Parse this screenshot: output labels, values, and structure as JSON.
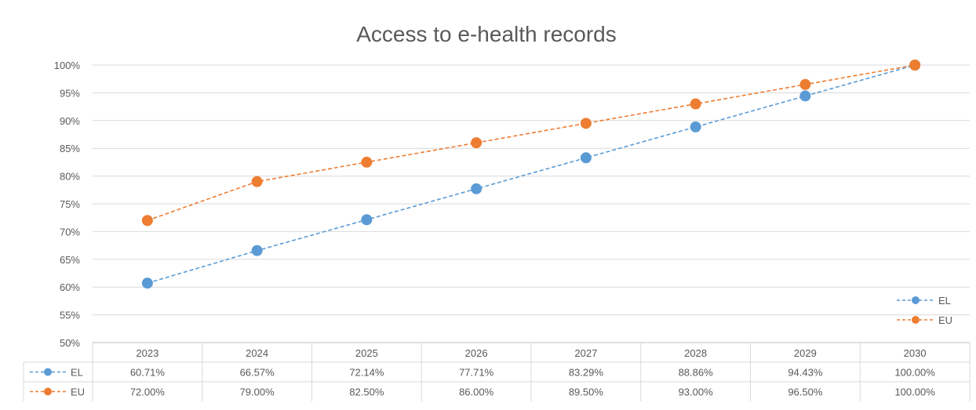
{
  "chart_data": {
    "type": "line",
    "title": "Access to e-health records",
    "categories": [
      "2023",
      "2024",
      "2025",
      "2026",
      "2027",
      "2028",
      "2029",
      "2030"
    ],
    "series": [
      {
        "name": "EL",
        "color": "#5b9bd5",
        "values": [
          60.71,
          66.57,
          72.14,
          77.71,
          83.29,
          88.86,
          94.43,
          100.0
        ],
        "table_labels": [
          "60.71%",
          "66.57%",
          "72.14%",
          "77.71%",
          "83.29%",
          "88.86%",
          "94.43%",
          "100.00%"
        ]
      },
      {
        "name": "EU",
        "color": "#ed7d31",
        "values": [
          72.0,
          79.0,
          82.5,
          86.0,
          89.5,
          93.0,
          96.5,
          100.0
        ],
        "table_labels": [
          "72.00%",
          "79.00%",
          "82.50%",
          "86.00%",
          "89.50%",
          "93.00%",
          "96.50%",
          "100.00%"
        ]
      }
    ],
    "y_ticks": [
      "50%",
      "55%",
      "60%",
      "65%",
      "70%",
      "75%",
      "80%",
      "85%",
      "90%",
      "95%",
      "100%"
    ],
    "ylim": [
      50,
      100
    ],
    "y_unit": "percent",
    "grid": true,
    "line_style": "dashed",
    "legend_position": "bottom-right",
    "data_table": true
  }
}
